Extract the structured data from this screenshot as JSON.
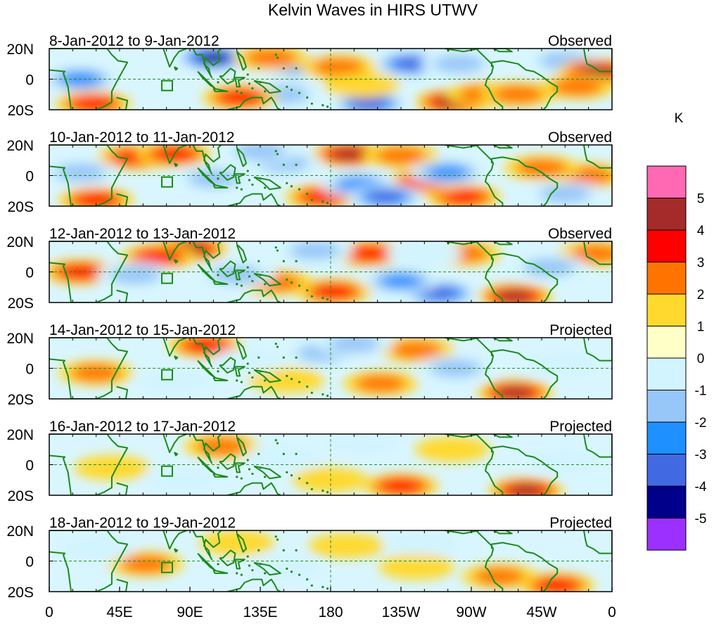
{
  "chart_data": {
    "type": "heatmap",
    "title": "Kelvin Waves in HIRS UTWV",
    "colorbar": {
      "unit": "K",
      "colors": [
        "#9b30ff",
        "#00008b",
        "#4169e1",
        "#1e90ff",
        "#97c6f8",
        "#d2f4ff",
        "#ffffc8",
        "#ffd92e",
        "#ff7400",
        "#ff0000",
        "#a52a2a",
        "#ff69b4"
      ],
      "tick_labels": [
        "-5",
        "-4",
        "-3",
        "-2",
        "-1",
        "0",
        "1",
        "2",
        "3",
        "4",
        "5"
      ]
    },
    "x_tick_labels": [
      "0",
      "45E",
      "90E",
      "135E",
      "180",
      "135W",
      "90W",
      "45W",
      "0"
    ],
    "y_tick_labels": [
      "20N",
      "0",
      "20S"
    ],
    "xlim": [
      0,
      360
    ],
    "ylim": [
      -20,
      20
    ],
    "panels": [
      {
        "date_range": "8-Jan-2012 to 9-Jan-2012",
        "label": "Observed",
        "anomalies": [
          {
            "lon": 105,
            "lat": 14,
            "value": -5
          },
          {
            "lon": 232,
            "lat": 10,
            "value": -4
          },
          {
            "lon": 158,
            "lat": 9,
            "value": -3
          },
          {
            "lon": 262,
            "lat": 10,
            "value": -2
          },
          {
            "lon": 205,
            "lat": -16,
            "value": -4
          },
          {
            "lon": 150,
            "lat": -10,
            "value": -2
          },
          {
            "lon": 20,
            "lat": 0,
            "value": -3
          },
          {
            "lon": 330,
            "lat": 12,
            "value": -2
          },
          {
            "lon": 258,
            "lat": -15,
            "value": 4
          },
          {
            "lon": 278,
            "lat": -10,
            "value": 2
          },
          {
            "lon": 350,
            "lat": 5,
            "value": 4
          },
          {
            "lon": 338,
            "lat": -5,
            "value": 2
          },
          {
            "lon": 122,
            "lat": -12,
            "value": 3
          },
          {
            "lon": 185,
            "lat": 8,
            "value": 2
          },
          {
            "lon": 142,
            "lat": 14,
            "value": 2
          },
          {
            "lon": 300,
            "lat": -10,
            "value": 2
          },
          {
            "lon": 28,
            "lat": -16,
            "value": 3
          },
          {
            "lon": 200,
            "lat": -4,
            "value": 1
          }
        ]
      },
      {
        "date_range": "10-Jan-2012 to 11-Jan-2012",
        "label": "Observed",
        "anomalies": [
          {
            "lon": 192,
            "lat": 14,
            "value": 4
          },
          {
            "lon": 225,
            "lat": 13,
            "value": 2
          },
          {
            "lon": 55,
            "lat": 12,
            "value": 3
          },
          {
            "lon": 80,
            "lat": 14,
            "value": 3
          },
          {
            "lon": 30,
            "lat": -16,
            "value": 3
          },
          {
            "lon": 265,
            "lat": -14,
            "value": 3
          },
          {
            "lon": 240,
            "lat": -4,
            "value": 3
          },
          {
            "lon": 345,
            "lat": 0,
            "value": 2
          },
          {
            "lon": 315,
            "lat": 5,
            "value": 2
          },
          {
            "lon": 175,
            "lat": -14,
            "value": 3
          },
          {
            "lon": 198,
            "lat": -6,
            "value": -3
          },
          {
            "lon": 215,
            "lat": -14,
            "value": -4
          },
          {
            "lon": 255,
            "lat": 2,
            "value": -3
          },
          {
            "lon": 150,
            "lat": 8,
            "value": -2
          },
          {
            "lon": 105,
            "lat": -2,
            "value": -2
          },
          {
            "lon": 20,
            "lat": 2,
            "value": -2
          },
          {
            "lon": 135,
            "lat": 16,
            "value": -2
          },
          {
            "lon": 330,
            "lat": -12,
            "value": -2
          }
        ]
      },
      {
        "date_range": "12-Jan-2012 to 13-Jan-2012",
        "label": "Observed",
        "anomalies": [
          {
            "lon": 90,
            "lat": 15,
            "value": 4
          },
          {
            "lon": 70,
            "lat": 10,
            "value": 3
          },
          {
            "lon": 205,
            "lat": 12,
            "value": 3
          },
          {
            "lon": 20,
            "lat": 0,
            "value": 3
          },
          {
            "lon": 182,
            "lat": -13,
            "value": 3
          },
          {
            "lon": 298,
            "lat": -16,
            "value": 4
          },
          {
            "lon": 145,
            "lat": -7,
            "value": 2
          },
          {
            "lon": 265,
            "lat": 12,
            "value": 2
          },
          {
            "lon": 350,
            "lat": 12,
            "value": 2
          },
          {
            "lon": 250,
            "lat": -14,
            "value": -4
          },
          {
            "lon": 225,
            "lat": -6,
            "value": -3
          },
          {
            "lon": 170,
            "lat": 14,
            "value": -2
          },
          {
            "lon": 120,
            "lat": -2,
            "value": -2
          },
          {
            "lon": 55,
            "lat": -2,
            "value": -2
          },
          {
            "lon": 320,
            "lat": 3,
            "value": -2
          },
          {
            "lon": 240,
            "lat": 12,
            "value": -1
          }
        ]
      },
      {
        "date_range": "14-Jan-2012 to 15-Jan-2012",
        "label": "Projected",
        "anomalies": [
          {
            "lon": 100,
            "lat": 15,
            "value": 3
          },
          {
            "lon": 235,
            "lat": 12,
            "value": 2
          },
          {
            "lon": 298,
            "lat": -16,
            "value": 4
          },
          {
            "lon": 30,
            "lat": -3,
            "value": 2
          },
          {
            "lon": 212,
            "lat": -10,
            "value": 2
          },
          {
            "lon": 152,
            "lat": -8,
            "value": 1
          },
          {
            "lon": 175,
            "lat": 10,
            "value": -2
          },
          {
            "lon": 260,
            "lat": 0,
            "value": -2
          },
          {
            "lon": 195,
            "lat": 16,
            "value": -2
          },
          {
            "lon": 330,
            "lat": 3,
            "value": -1
          },
          {
            "lon": 128,
            "lat": 5,
            "value": -1
          },
          {
            "lon": 80,
            "lat": -8,
            "value": -1
          }
        ]
      },
      {
        "date_range": "16-Jan-2012 to 17-Jan-2012",
        "label": "Projected",
        "anomalies": [
          {
            "lon": 110,
            "lat": 12,
            "value": 2
          },
          {
            "lon": 225,
            "lat": -14,
            "value": 3
          },
          {
            "lon": 305,
            "lat": -17,
            "value": 4
          },
          {
            "lon": 40,
            "lat": -2,
            "value": 1
          },
          {
            "lon": 180,
            "lat": -10,
            "value": 1
          },
          {
            "lon": 258,
            "lat": 10,
            "value": 1
          },
          {
            "lon": 150,
            "lat": 5,
            "value": -1
          },
          {
            "lon": 200,
            "lat": 14,
            "value": -1
          },
          {
            "lon": 85,
            "lat": -10,
            "value": -1
          },
          {
            "lon": 330,
            "lat": 2,
            "value": -1
          }
        ]
      },
      {
        "date_range": "18-Jan-2012 to 19-Jan-2012",
        "label": "Projected",
        "anomalies": [
          {
            "lon": 62,
            "lat": -2,
            "value": 2
          },
          {
            "lon": 288,
            "lat": -10,
            "value": 2
          },
          {
            "lon": 325,
            "lat": -16,
            "value": 3
          },
          {
            "lon": 190,
            "lat": 10,
            "value": 1
          },
          {
            "lon": 120,
            "lat": 12,
            "value": 1
          },
          {
            "lon": 235,
            "lat": -4,
            "value": 1
          },
          {
            "lon": 240,
            "lat": 12,
            "value": -1
          },
          {
            "lon": 150,
            "lat": -5,
            "value": -1
          },
          {
            "lon": 30,
            "lat": 8,
            "value": -1
          }
        ]
      }
    ]
  }
}
